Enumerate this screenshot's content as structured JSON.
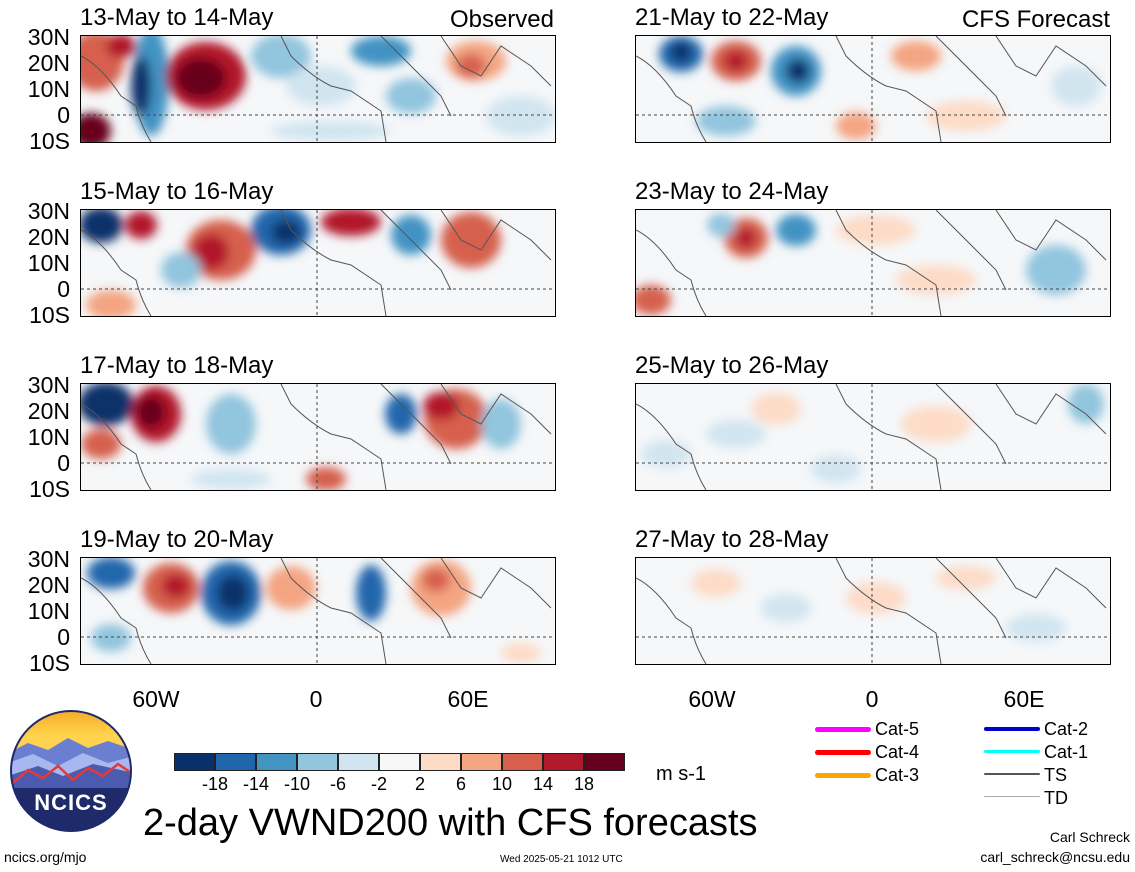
{
  "figure_title": "2-day VWND200 with CFS forecasts",
  "logo": {
    "text": "NCICS"
  },
  "units": "m s-1",
  "footer": {
    "left": "ncics.org/mjo",
    "center": "Wed 2025-05-21 1012 UTC",
    "right_name": "Carl Schreck",
    "right_email": "carl_schreck@ncsu.edu"
  },
  "columns": {
    "left": "Observed",
    "right": "CFS Forecast"
  },
  "lat_labels": [
    "30N",
    "20N",
    "10N",
    "0",
    "10S"
  ],
  "lon_labels": [
    "60W",
    "0",
    "60E"
  ],
  "panels_left": [
    {
      "title": "13-May to 14-May"
    },
    {
      "title": "15-May to 16-May"
    },
    {
      "title": "17-May to 18-May"
    },
    {
      "title": "19-May to 20-May"
    }
  ],
  "panels_right": [
    {
      "title": "21-May to 22-May"
    },
    {
      "title": "23-May to 24-May"
    },
    {
      "title": "25-May to 26-May"
    },
    {
      "title": "27-May to 28-May"
    }
  ],
  "colorbar": {
    "labels": [
      "-18",
      "-14",
      "-10",
      "-6",
      "-2",
      "2",
      "6",
      "10",
      "14",
      "18"
    ],
    "colors": [
      "#08306b",
      "#2166ac",
      "#4393c3",
      "#92c5de",
      "#d1e5f0",
      "#f7f7f7",
      "#fddbc7",
      "#f4a582",
      "#d6604d",
      "#b2182b",
      "#67001f"
    ]
  },
  "legend": [
    {
      "label": "Cat-5",
      "color": "#ff00ff"
    },
    {
      "label": "Cat-4",
      "color": "#ff0000"
    },
    {
      "label": "Cat-3",
      "color": "#ffa500"
    },
    {
      "label": "Cat-2",
      "color": "#0000cd"
    },
    {
      "label": "Cat-1",
      "color": "#00ffff"
    },
    {
      "label": "TS",
      "color": "#555555"
    },
    {
      "label": "TD",
      "color": "#aaaaaa"
    }
  ]
}
